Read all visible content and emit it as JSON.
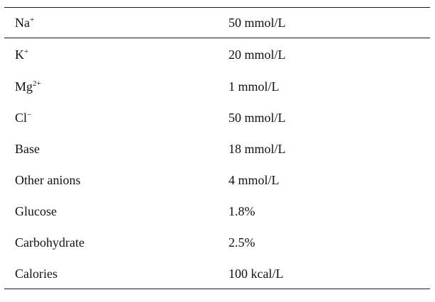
{
  "table": {
    "rows": [
      {
        "name": "Na",
        "sup": "+",
        "value": "50 mmol/L"
      },
      {
        "name": "K",
        "sup": "+",
        "value": "20 mmol/L"
      },
      {
        "name": "Mg",
        "sup": "2+",
        "value": "1 mmol/L"
      },
      {
        "name": "Cl",
        "sup": "−",
        "value": "50 mmol/L"
      },
      {
        "name": "Base",
        "sup": "",
        "value": "18 mmol/L"
      },
      {
        "name": "Other anions",
        "sup": "",
        "value": "4 mmol/L"
      },
      {
        "name": "Glucose",
        "sup": "",
        "value": "1.8%"
      },
      {
        "name": "Carbohydrate",
        "sup": "",
        "value": "2.5%"
      },
      {
        "name": "Calories",
        "sup": "",
        "value": "100 kcal/L"
      }
    ]
  }
}
